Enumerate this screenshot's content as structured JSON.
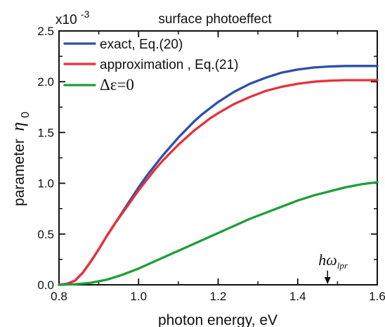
{
  "chart_data": {
    "type": "line",
    "title": "surface photoeffect",
    "multiplier_label": "x10",
    "multiplier_exponent": "-3",
    "xlabel": "photon energy, eV",
    "ylabel": "parameter",
    "ylabel_symbol": "η",
    "ylabel_subscript": "0",
    "xlim": [
      0.8,
      1.6
    ],
    "ylim": [
      0.0,
      2.5
    ],
    "x_ticks": [
      {
        "value": 0.8,
        "label": "0.8"
      },
      {
        "value": 1.0,
        "label": "1.0"
      },
      {
        "value": 1.2,
        "label": "1.2"
      },
      {
        "value": 1.4,
        "label": "1.4"
      },
      {
        "value": 1.6,
        "label": "1.6"
      }
    ],
    "y_ticks": [
      {
        "value": 0.0,
        "label": "0.0"
      },
      {
        "value": 0.5,
        "label": "0.5"
      },
      {
        "value": 1.0,
        "label": "1.0"
      },
      {
        "value": 1.5,
        "label": "1.5"
      },
      {
        "value": 2.0,
        "label": "2.0"
      },
      {
        "value": 2.5,
        "label": "2.5"
      }
    ],
    "x_minor_step": 0.1,
    "y_minor_step": 0.25,
    "grid": false,
    "legend_position": "top-left",
    "series": [
      {
        "name": "exact, Eq.(20)",
        "color": "#2d4fa8",
        "points": [
          [
            0.8,
            0.0
          ],
          [
            0.82,
            0.01
          ],
          [
            0.84,
            0.04
          ],
          [
            0.86,
            0.12
          ],
          [
            0.88,
            0.23
          ],
          [
            0.9,
            0.35
          ],
          [
            0.92,
            0.48
          ],
          [
            0.94,
            0.6
          ],
          [
            0.96,
            0.72
          ],
          [
            0.98,
            0.84
          ],
          [
            1.0,
            0.96
          ],
          [
            1.02,
            1.07
          ],
          [
            1.04,
            1.17
          ],
          [
            1.06,
            1.27
          ],
          [
            1.08,
            1.36
          ],
          [
            1.1,
            1.45
          ],
          [
            1.12,
            1.53
          ],
          [
            1.14,
            1.61
          ],
          [
            1.16,
            1.68
          ],
          [
            1.18,
            1.74
          ],
          [
            1.2,
            1.8
          ],
          [
            1.24,
            1.9
          ],
          [
            1.28,
            1.98
          ],
          [
            1.32,
            2.04
          ],
          [
            1.36,
            2.09
          ],
          [
            1.4,
            2.12
          ],
          [
            1.44,
            2.14
          ],
          [
            1.48,
            2.15
          ],
          [
            1.52,
            2.155
          ],
          [
            1.56,
            2.155
          ],
          [
            1.6,
            2.155
          ]
        ]
      },
      {
        "name": "approximation , Eq.(21)",
        "color": "#e8303a",
        "points": [
          [
            0.8,
            0.0
          ],
          [
            0.82,
            0.01
          ],
          [
            0.84,
            0.04
          ],
          [
            0.86,
            0.12
          ],
          [
            0.88,
            0.23
          ],
          [
            0.9,
            0.35
          ],
          [
            0.92,
            0.48
          ],
          [
            0.94,
            0.6
          ],
          [
            0.96,
            0.71
          ],
          [
            0.98,
            0.82
          ],
          [
            1.0,
            0.93
          ],
          [
            1.02,
            1.03
          ],
          [
            1.04,
            1.13
          ],
          [
            1.06,
            1.22
          ],
          [
            1.08,
            1.3
          ],
          [
            1.1,
            1.38
          ],
          [
            1.12,
            1.45
          ],
          [
            1.14,
            1.52
          ],
          [
            1.16,
            1.58
          ],
          [
            1.18,
            1.64
          ],
          [
            1.2,
            1.69
          ],
          [
            1.24,
            1.78
          ],
          [
            1.28,
            1.85
          ],
          [
            1.32,
            1.91
          ],
          [
            1.36,
            1.95
          ],
          [
            1.4,
            1.98
          ],
          [
            1.44,
            2.0
          ],
          [
            1.48,
            2.01
          ],
          [
            1.52,
            2.015
          ],
          [
            1.56,
            2.015
          ],
          [
            1.6,
            2.015
          ]
        ]
      },
      {
        "name": "Δε=0",
        "color": "#1e9e3a",
        "points": [
          [
            0.8,
            0.0
          ],
          [
            0.84,
            0.005
          ],
          [
            0.88,
            0.02
          ],
          [
            0.92,
            0.05
          ],
          [
            0.96,
            0.1
          ],
          [
            1.0,
            0.16
          ],
          [
            1.04,
            0.23
          ],
          [
            1.08,
            0.3
          ],
          [
            1.12,
            0.37
          ],
          [
            1.16,
            0.44
          ],
          [
            1.2,
            0.51
          ],
          [
            1.24,
            0.58
          ],
          [
            1.28,
            0.65
          ],
          [
            1.32,
            0.71
          ],
          [
            1.36,
            0.77
          ],
          [
            1.4,
            0.83
          ],
          [
            1.44,
            0.88
          ],
          [
            1.48,
            0.92
          ],
          [
            1.52,
            0.96
          ],
          [
            1.56,
            0.99
          ],
          [
            1.6,
            1.01
          ]
        ]
      }
    ],
    "annotations": [
      {
        "text": "hω",
        "subscript": "lpr",
        "x": 1.475,
        "y_start": 0.14,
        "y_end": 0.0,
        "kind": "arrow"
      }
    ]
  }
}
